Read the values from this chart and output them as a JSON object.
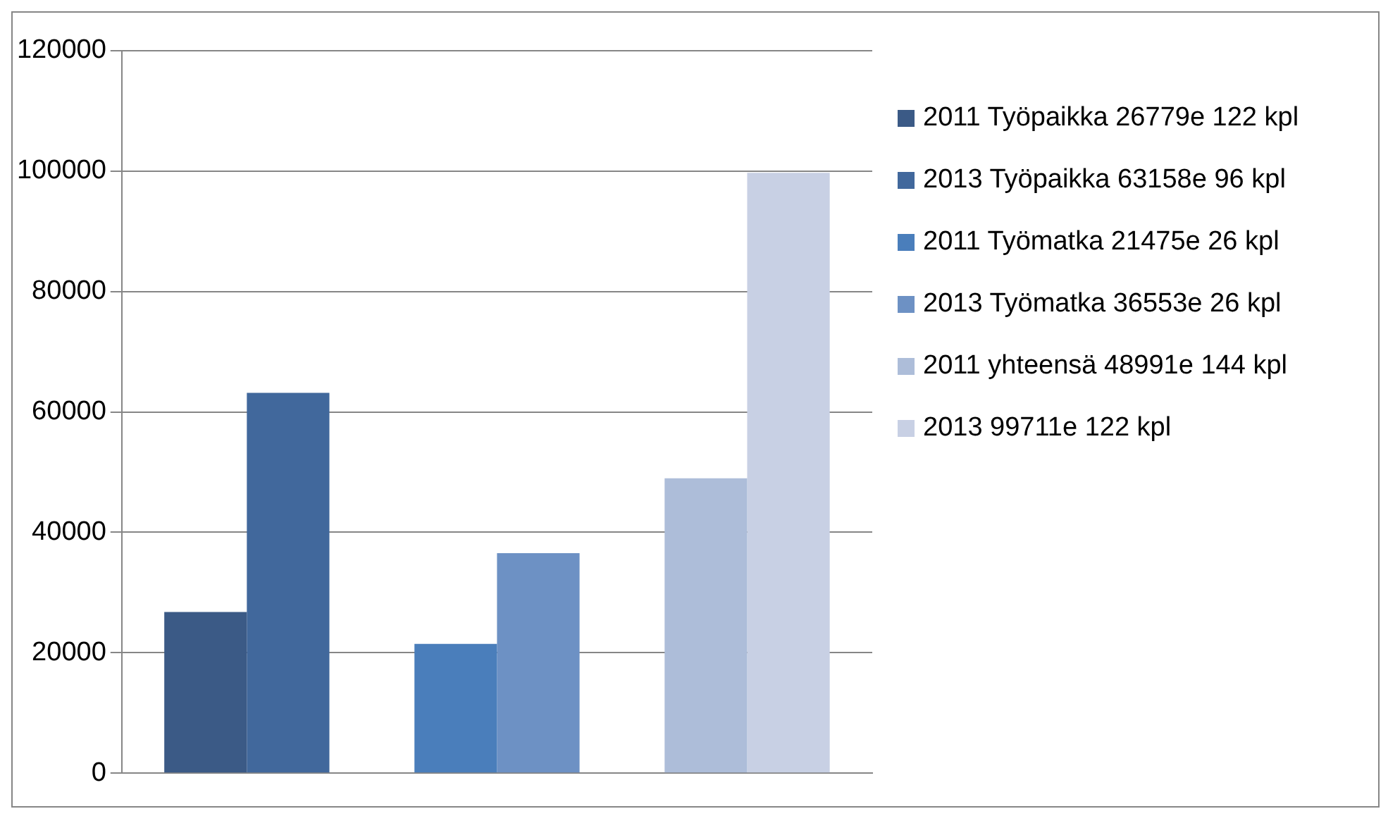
{
  "chart_data": {
    "type": "bar",
    "categories": [
      null,
      null,
      null
    ],
    "series": [
      {
        "name": "2011 Työpaikka 26779e 122 kpl",
        "color": "#3b5a86",
        "values": [
          26779,
          null,
          null
        ]
      },
      {
        "name": "2013 Työpaikka  63158e 96 kpl",
        "color": "#41689c",
        "values": [
          63158,
          null,
          null
        ]
      },
      {
        "name": "2011 Työmatka 21475e  26 kpl",
        "color": "#4a7ebb",
        "values": [
          null,
          21475,
          null
        ]
      },
      {
        "name": "2013 Työmatka 36553e 26 kpl",
        "color": "#6d91c4",
        "values": [
          null,
          36553,
          null
        ]
      },
      {
        "name": "2011 yhteensä 48991e 144 kpl",
        "color": "#adbdd9",
        "values": [
          null,
          null,
          48991
        ]
      },
      {
        "name": "2013 99711e 122 kpl",
        "color": "#c8d0e4",
        "values": [
          null,
          null,
          99711
        ]
      }
    ],
    "ylim": [
      0,
      120000
    ],
    "yticks": [
      0,
      20000,
      40000,
      60000,
      80000,
      100000,
      120000
    ],
    "grid": "y",
    "legend": "right"
  }
}
